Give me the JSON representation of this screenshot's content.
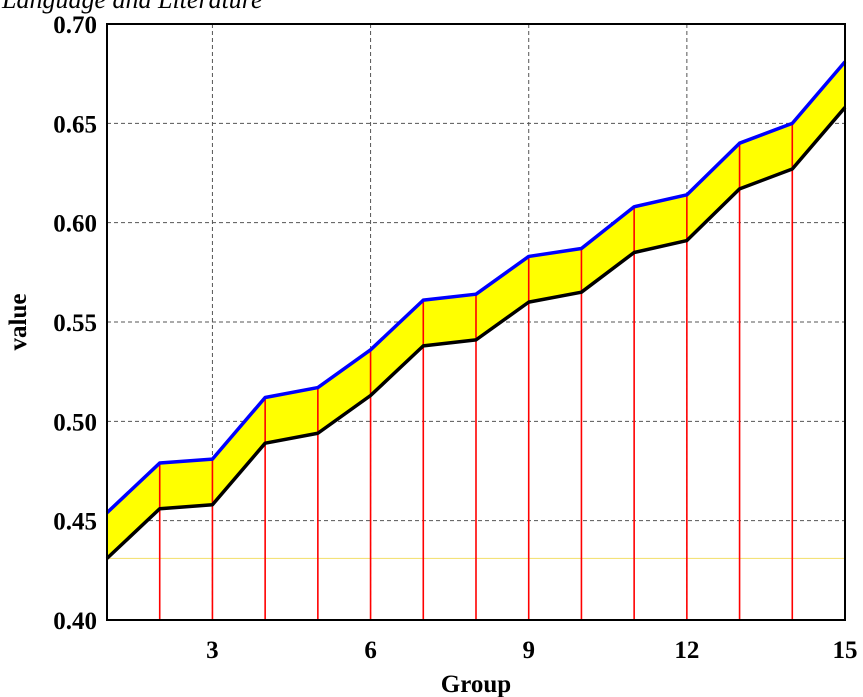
{
  "chart_data": {
    "type": "area",
    "title": "Language and Literature",
    "xlabel": "Group",
    "ylabel": "value",
    "xlim": [
      1,
      15
    ],
    "ylim": [
      0.4,
      0.7
    ],
    "x_ticks": [
      3,
      6,
      9,
      12,
      15
    ],
    "y_ticks": [
      0.4,
      0.45,
      0.5,
      0.55,
      0.6,
      0.65,
      0.7
    ],
    "y_tick_labels": [
      "0.40",
      "0.45",
      "0.50",
      "0.55",
      "0.60",
      "0.65",
      "0.70"
    ],
    "grid": true,
    "x": [
      1,
      2,
      3,
      4,
      5,
      6,
      7,
      8,
      9,
      10,
      11,
      12,
      13,
      14,
      15
    ],
    "series": [
      {
        "values": [
          0.454,
          0.479,
          0.481,
          0.512,
          0.517,
          0.536,
          0.561,
          0.564,
          0.583,
          0.587,
          0.608,
          0.614,
          0.64,
          0.65,
          0.681
        ]
      },
      {
        "values": [
          0.431,
          0.456,
          0.458,
          0.489,
          0.494,
          0.513,
          0.538,
          0.541,
          0.56,
          0.565,
          0.585,
          0.591,
          0.617,
          0.627,
          0.658
        ]
      }
    ],
    "reference_line": 0.431,
    "colors": {
      "upper_line": "#0000ff",
      "lower_line": "#000000",
      "band_fill": "#ffff00",
      "drop_lines": "#ff0000",
      "reference_line": "#f4e27a",
      "grid": "#555555"
    }
  }
}
